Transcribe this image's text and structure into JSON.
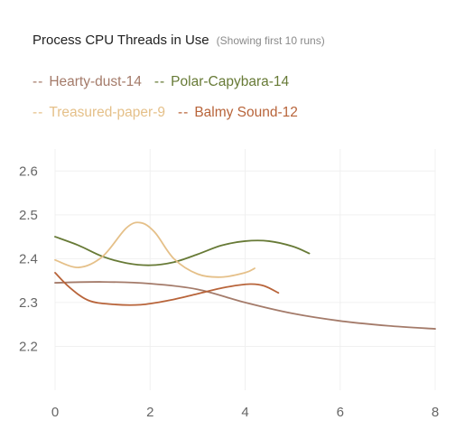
{
  "header": {
    "title": "Process CPU Threads in Use",
    "subtitle": "(Showing first 10 runs)"
  },
  "legend": [
    {
      "dash": "--",
      "label": "Hearty-dust-14",
      "color": "#a47b6a"
    },
    {
      "dash": "--",
      "label": "Polar-Capybara-14",
      "color": "#677a36"
    },
    {
      "dash": "--",
      "label": "Treasured-paper-9",
      "color": "#e5c089"
    },
    {
      "dash": "--",
      "label": "Balmy Sound-12",
      "color": "#b8643a"
    }
  ],
  "chart_data": {
    "type": "line",
    "title": "Process CPU Threads in Use",
    "subtitle": "(Showing first 10 runs)",
    "xlim": [
      0,
      8
    ],
    "ylim": [
      2.1,
      2.65
    ],
    "xticks": [
      0,
      2,
      4,
      6,
      8
    ],
    "yticks": [
      2.2,
      2.3,
      2.4,
      2.5,
      2.6
    ],
    "grid": true,
    "legend_position": "top",
    "series": [
      {
        "name": "Hearty-dust-14",
        "color": "#a47b6a",
        "x": [
          0,
          1,
          2,
          3,
          4,
          5,
          6,
          7,
          8
        ],
        "y": [
          2.345,
          2.347,
          2.343,
          2.33,
          2.3,
          2.275,
          2.258,
          2.247,
          2.24
        ]
      },
      {
        "name": "Polar-Capybara-14",
        "color": "#677a36",
        "x": [
          0,
          0.5,
          1,
          1.5,
          2,
          2.5,
          3,
          3.5,
          4,
          4.5,
          5,
          5.35
        ],
        "y": [
          2.45,
          2.43,
          2.405,
          2.39,
          2.385,
          2.392,
          2.41,
          2.43,
          2.44,
          2.44,
          2.428,
          2.412
        ]
      },
      {
        "name": "Treasured-paper-9",
        "color": "#e5c089",
        "x": [
          0,
          0.5,
          1,
          1.5,
          1.8,
          2.1,
          2.5,
          3,
          3.5,
          4,
          4.2
        ],
        "y": [
          2.397,
          2.38,
          2.405,
          2.47,
          2.482,
          2.46,
          2.4,
          2.365,
          2.358,
          2.368,
          2.378
        ]
      },
      {
        "name": "Balmy Sound-12",
        "color": "#b8643a",
        "x": [
          0,
          0.3,
          0.7,
          1.2,
          1.8,
          2.4,
          3,
          3.6,
          4.1,
          4.4,
          4.7
        ],
        "y": [
          2.368,
          2.335,
          2.305,
          2.296,
          2.295,
          2.305,
          2.32,
          2.335,
          2.342,
          2.338,
          2.322
        ]
      }
    ]
  }
}
